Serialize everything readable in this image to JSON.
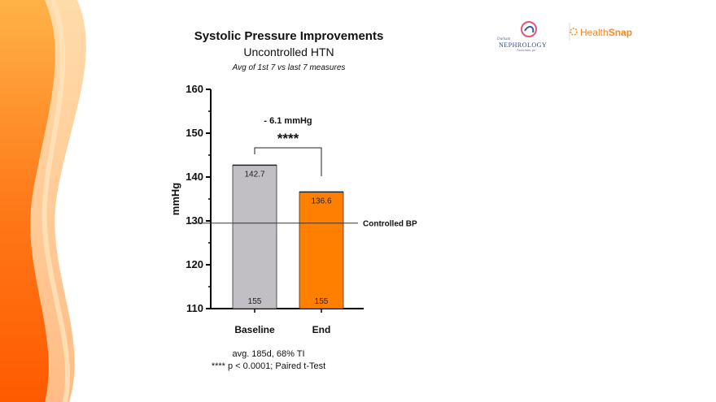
{
  "header": {
    "title": "Systolic Pressure Improvements",
    "subtitle": "Uncontrolled HTN",
    "note": "Avg of 1st 7 vs last 7 measures"
  },
  "logos": {
    "left_small": "Durham",
    "left_main": "NEPHROLOGY",
    "left_sub": "Associates, pa",
    "right_light": "Health",
    "right_bold": "Snap",
    "brand_color": "#f08a24"
  },
  "footer": {
    "line1": "avg. 185d,  68% TI",
    "line2": "**** p < 0.0001; Paired t-Test"
  },
  "chart_data": {
    "type": "bar",
    "categories": [
      "Baseline",
      "End"
    ],
    "values": [
      142.7,
      136.6
    ],
    "value_labels": [
      "142.7",
      "136.6"
    ],
    "n_labels": [
      "155",
      "155"
    ],
    "colors": [
      "#c1bfc4",
      "#ff8000"
    ],
    "ylabel": "mmHg",
    "ylim": [
      110,
      160
    ],
    "yticks": [
      110,
      120,
      130,
      140,
      150,
      160
    ],
    "reference_line": {
      "value": 129.5,
      "label": "Controlled BP"
    },
    "annotation": {
      "difference": "- 6.1 mmHg",
      "significance": "****"
    },
    "grid": false
  }
}
